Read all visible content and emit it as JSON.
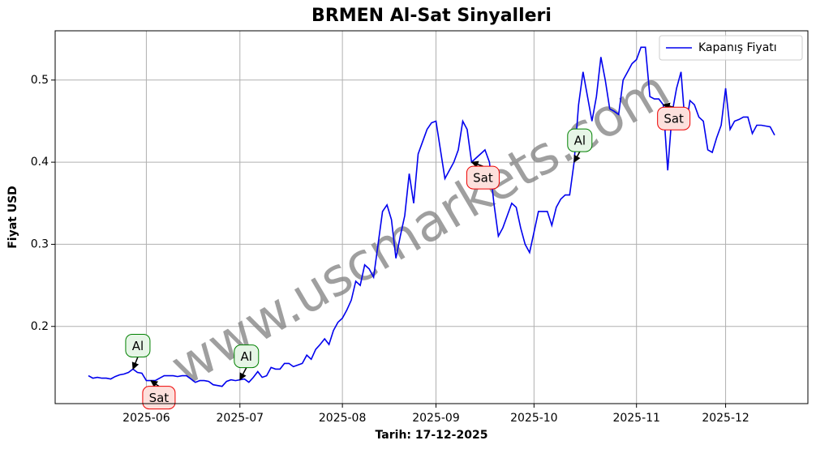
{
  "chart_data": {
    "type": "line",
    "title": "BRMEN Al-Sat Sinyalleri",
    "xlabel": "Tarih: 17-12-2025",
    "ylabel": "Fiyat USD",
    "watermark": "www.uscmarkets.com",
    "x": [
      null,
      null,
      null,
      null,
      null,
      null,
      null,
      null,
      null,
      null,
      null,
      null,
      null,
      "2025-06",
      null,
      null,
      null,
      null,
      null,
      null,
      null,
      null,
      null,
      null,
      null,
      null,
      null,
      null,
      null,
      null,
      null,
      null,
      null,
      null,
      "2025-07",
      null,
      null,
      null,
      null,
      null,
      null,
      null,
      null,
      null,
      null,
      null,
      null,
      null,
      null,
      null,
      null,
      null,
      null,
      null,
      null,
      null,
      null,
      "2025-08",
      null,
      null,
      null,
      null,
      null,
      null,
      null,
      null,
      null,
      null,
      null,
      null,
      null,
      null,
      null,
      null,
      null,
      null,
      null,
      null,
      "2025-09",
      null,
      null,
      null,
      null,
      null,
      null,
      null,
      null,
      null,
      null,
      null,
      null,
      null,
      null,
      null,
      null,
      null,
      null,
      null,
      null,
      null,
      "2025-10",
      null,
      null,
      null,
      null,
      null,
      null,
      null,
      null,
      null,
      null,
      null,
      null,
      null,
      null,
      null,
      null,
      null,
      null,
      null,
      null,
      null,
      null,
      "2025-11",
      null,
      null,
      null,
      null,
      null,
      null,
      null,
      null,
      null,
      null,
      null,
      null,
      null,
      null,
      null,
      null,
      null,
      null,
      null,
      "2025-12",
      null,
      null,
      null,
      null,
      null,
      null,
      null,
      null,
      null,
      null,
      null
    ],
    "series": [
      {
        "name": "Kapanış Fiyatı",
        "color": "#0000ee",
        "values": [
          0.14,
          0.137,
          0.138,
          0.137,
          0.137,
          0.136,
          0.139,
          0.141,
          0.142,
          0.144,
          0.148,
          0.144,
          0.143,
          0.134,
          0.134,
          0.134,
          0.137,
          0.14,
          0.14,
          0.14,
          0.139,
          0.14,
          0.14,
          0.136,
          0.132,
          0.134,
          0.134,
          0.133,
          0.129,
          0.128,
          0.127,
          0.133,
          0.135,
          0.134,
          0.135,
          0.136,
          0.132,
          0.138,
          0.145,
          0.138,
          0.14,
          0.15,
          0.148,
          0.148,
          0.155,
          0.155,
          0.151,
          0.153,
          0.155,
          0.165,
          0.16,
          0.172,
          0.178,
          0.185,
          0.178,
          0.195,
          0.205,
          0.21,
          0.22,
          0.232,
          0.255,
          0.25,
          0.275,
          0.27,
          0.26,
          0.3,
          0.34,
          0.348,
          0.33,
          0.283,
          0.31,
          0.335,
          0.386,
          0.35,
          0.41,
          0.425,
          0.44,
          0.448,
          0.45,
          0.415,
          0.38,
          0.39,
          0.4,
          0.415,
          0.45,
          0.44,
          0.4,
          0.405,
          0.41,
          0.415,
          0.4,
          0.35,
          0.31,
          0.32,
          0.335,
          0.35,
          0.345,
          0.32,
          0.3,
          0.29,
          0.315,
          0.34,
          0.34,
          0.34,
          0.323,
          0.345,
          0.355,
          0.36,
          0.36,
          0.4,
          0.47,
          0.51,
          0.48,
          0.45,
          0.48,
          0.528,
          0.5,
          0.465,
          0.462,
          0.458,
          0.5,
          0.51,
          0.52,
          0.525,
          0.54,
          0.54,
          0.48,
          0.477,
          0.477,
          0.47,
          0.39,
          0.46,
          0.49,
          0.51,
          0.44,
          0.475,
          0.47,
          0.455,
          0.45,
          0.415,
          0.412,
          0.43,
          0.445,
          0.49,
          0.44,
          0.45,
          0.452,
          0.455,
          0.455,
          0.435,
          0.445,
          0.445,
          0.444,
          0.443,
          0.433
        ]
      }
    ],
    "annotations": [
      "Al",
      "Sat",
      "Al",
      "Sat",
      "Al",
      "Sat"
    ],
    "ylim": [
      0.106,
      0.56
    ],
    "yticks": [
      0.2,
      0.3,
      0.4,
      0.5
    ],
    "grid": true,
    "legend": "upper right"
  }
}
